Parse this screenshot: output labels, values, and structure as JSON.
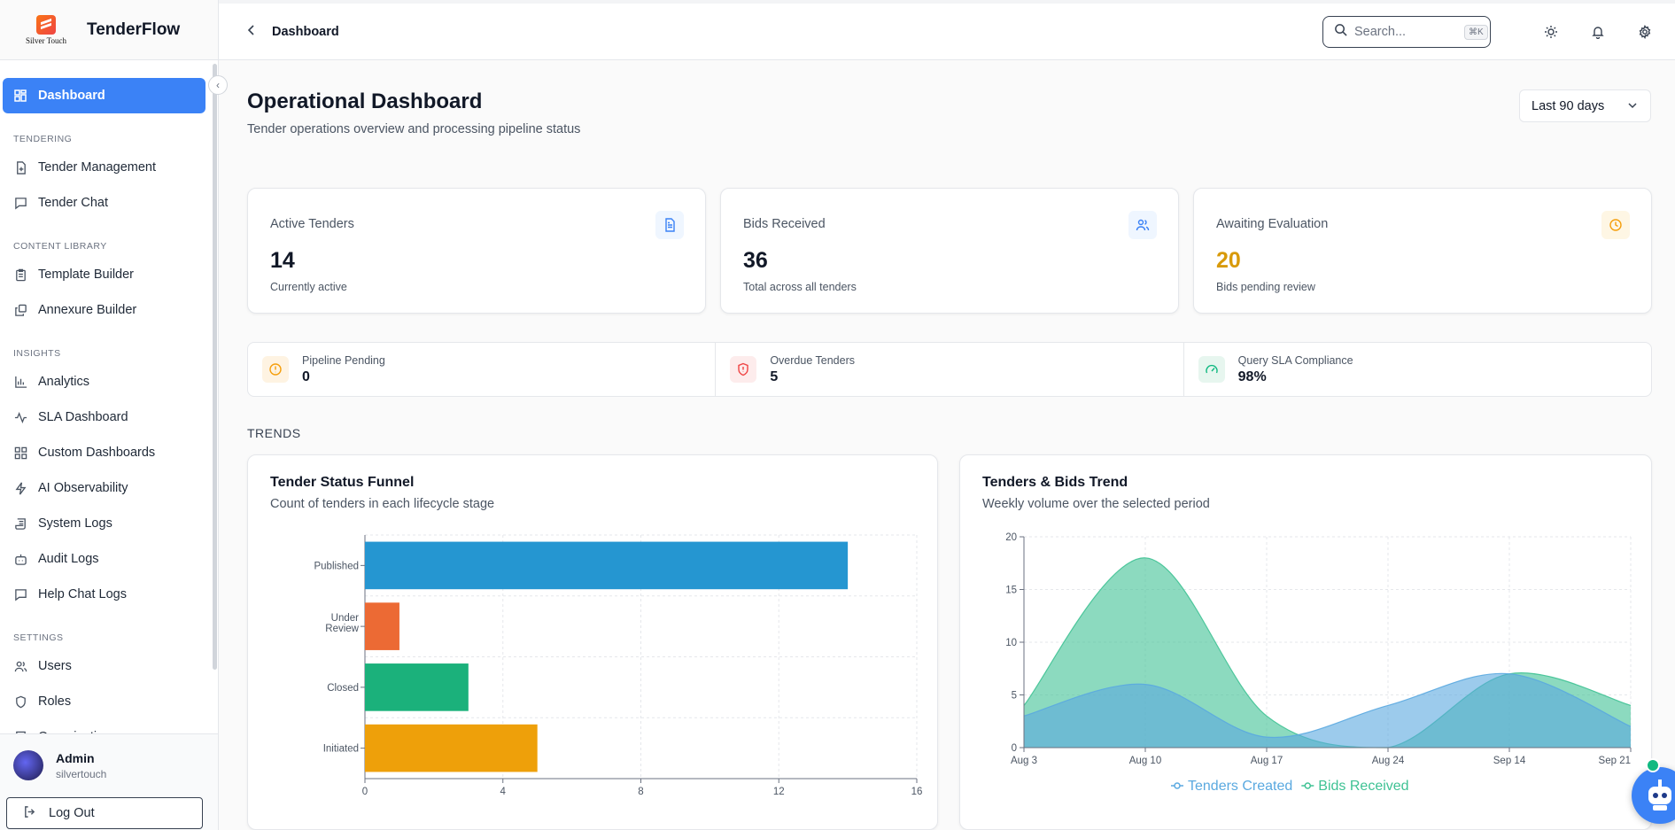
{
  "brand": {
    "logo_text": "Silver Touch",
    "name": "TenderFlow"
  },
  "sidebar": {
    "active": {
      "label": "Dashboard",
      "icon": "dashboard-icon"
    },
    "sections": [
      {
        "title": "TENDERING",
        "items": [
          {
            "label": "Tender Management",
            "icon": "file-plus-icon"
          },
          {
            "label": "Tender Chat",
            "icon": "message-square-icon"
          }
        ]
      },
      {
        "title": "CONTENT LIBRARY",
        "items": [
          {
            "label": "Template Builder",
            "icon": "clipboard-icon"
          },
          {
            "label": "Annexure Builder",
            "icon": "copy-icon"
          }
        ]
      },
      {
        "title": "INSIGHTS",
        "items": [
          {
            "label": "Analytics",
            "icon": "bar-chart-icon"
          },
          {
            "label": "SLA Dashboard",
            "icon": "activity-icon"
          },
          {
            "label": "Custom Dashboards",
            "icon": "layout-grid-icon"
          },
          {
            "label": "AI Observability",
            "icon": "zap-icon"
          },
          {
            "label": "System Logs",
            "icon": "scroll-icon"
          },
          {
            "label": "Audit Logs",
            "icon": "bot-icon"
          },
          {
            "label": "Help Chat Logs",
            "icon": "message-square-icon"
          }
        ]
      },
      {
        "title": "SETTINGS",
        "items": [
          {
            "label": "Users",
            "icon": "users-icon"
          },
          {
            "label": "Roles",
            "icon": "shield-icon"
          },
          {
            "label": "Organization",
            "icon": "building-icon"
          }
        ]
      }
    ]
  },
  "user": {
    "name": "Admin",
    "org": "silvertouch",
    "logout_label": "Log Out"
  },
  "header": {
    "breadcrumb": "Dashboard",
    "search_placeholder": "Search...",
    "search_shortcut": "⌘K"
  },
  "page": {
    "title": "Operational Dashboard",
    "subtitle": "Tender operations overview and processing pipeline status",
    "range": "Last 90 days"
  },
  "stats": [
    {
      "label": "Active Tenders",
      "value": "14",
      "note": "Currently active",
      "color": "#111827",
      "icon_color": "#3b82f6",
      "icon_bg": "#eff6ff"
    },
    {
      "label": "Bids Received",
      "value": "36",
      "note": "Total across all tenders",
      "color": "#111827",
      "icon_color": "#3b82f6",
      "icon_bg": "#eff6ff"
    },
    {
      "label": "Awaiting Evaluation",
      "value": "20",
      "note": "Bids pending review",
      "color": "#d89a0a",
      "icon_color": "#f59e0b",
      "icon_bg": "#fef6e4"
    }
  ],
  "kpis": [
    {
      "label": "Pipeline Pending",
      "value": "0",
      "icon_color": "#f59e0b",
      "icon_bg": "#fef3e2"
    },
    {
      "label": "Overdue Tenders",
      "value": "5",
      "icon_color": "#ef4444",
      "icon_bg": "#fdecec"
    },
    {
      "label": "Query SLA Compliance",
      "value": "98%",
      "icon_color": "#10b981",
      "icon_bg": "#e7f6ef"
    }
  ],
  "trends_heading": "TRENDS",
  "chart_data": [
    {
      "type": "bar",
      "orientation": "horizontal",
      "title": "Tender Status Funnel",
      "subtitle": "Count of tenders in each lifecycle stage",
      "categories": [
        "Published",
        "Under Review",
        "Closed",
        "Initiated"
      ],
      "values": [
        14,
        1,
        3,
        5
      ],
      "colors": [
        "#2596d1",
        "#ec6a34",
        "#1bb17b",
        "#eea00a"
      ],
      "xlim": [
        0,
        16
      ],
      "xticks": [
        0,
        4,
        8,
        12,
        16
      ],
      "grid": true
    },
    {
      "type": "area",
      "title": "Tenders & Bids Trend",
      "subtitle": "Weekly volume over the selected period",
      "x": [
        "Aug 3",
        "Aug 10",
        "Aug 17",
        "Aug 24",
        "Sep 14",
        "Sep 21"
      ],
      "ylim": [
        0,
        20
      ],
      "yticks": [
        0,
        5,
        10,
        15,
        20
      ],
      "grid": true,
      "legend": "bottom",
      "series": [
        {
          "name": "Bids Received",
          "values": [
            4,
            18,
            3,
            0,
            7,
            4
          ],
          "color": "#3fc294"
        },
        {
          "name": "Tenders Created",
          "values": [
            3,
            6,
            1,
            4,
            7,
            2
          ],
          "color": "#5aa9e0"
        }
      ]
    }
  ]
}
